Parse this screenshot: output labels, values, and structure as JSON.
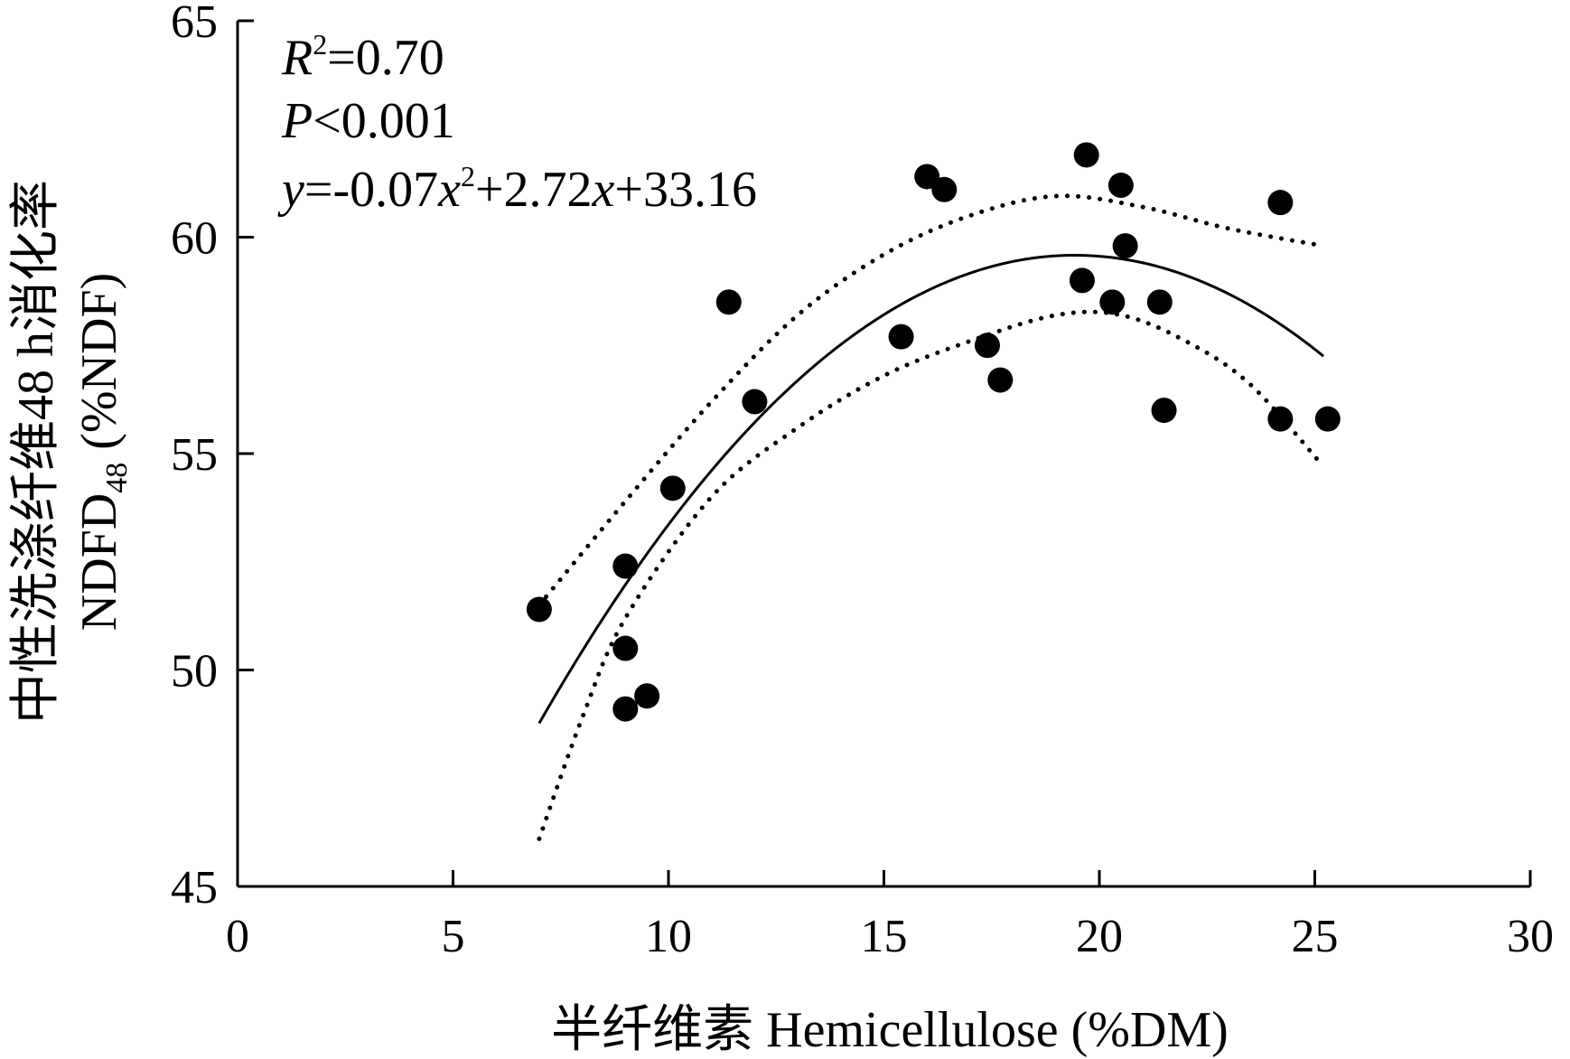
{
  "chart_data": {
    "type": "scatter",
    "xlabel": "半纤维素 Hemicellulose (%DM)",
    "ylabel_line1": "中性洗涤纤维48 h消化率",
    "ylabel_line2": "NDFD",
    "ylabel_line2_sub": "48",
    "ylabel_line2_suffix": " (%NDF)",
    "xlim": [
      0,
      30
    ],
    "ylim": [
      45,
      65
    ],
    "xticks": [
      0,
      5,
      10,
      15,
      20,
      25,
      30
    ],
    "yticks": [
      45,
      50,
      55,
      60,
      65
    ],
    "annotations": {
      "r2_label": "R",
      "r2_sup": "2",
      "r2_value": "=0.70",
      "p_label": "P",
      "p_value": "<0.001",
      "eq_y": "y",
      "eq_part1": "=-0.07",
      "eq_x1": "x",
      "eq_sup": "2",
      "eq_part2": "+2.72",
      "eq_x2": "x",
      "eq_part3": "+33.16"
    },
    "points": [
      {
        "x": 7.0,
        "y": 51.4
      },
      {
        "x": 9.0,
        "y": 52.4
      },
      {
        "x": 9.0,
        "y": 50.5
      },
      {
        "x": 9.0,
        "y": 49.1
      },
      {
        "x": 9.5,
        "y": 49.4
      },
      {
        "x": 10.1,
        "y": 54.2
      },
      {
        "x": 11.4,
        "y": 58.5
      },
      {
        "x": 12.0,
        "y": 56.2
      },
      {
        "x": 15.4,
        "y": 57.7
      },
      {
        "x": 16.0,
        "y": 61.4
      },
      {
        "x": 16.4,
        "y": 61.1
      },
      {
        "x": 17.4,
        "y": 57.5
      },
      {
        "x": 17.7,
        "y": 56.7
      },
      {
        "x": 19.6,
        "y": 59.0
      },
      {
        "x": 19.7,
        "y": 61.9
      },
      {
        "x": 20.3,
        "y": 58.5
      },
      {
        "x": 20.5,
        "y": 61.2
      },
      {
        "x": 20.6,
        "y": 59.8
      },
      {
        "x": 21.4,
        "y": 58.5
      },
      {
        "x": 21.5,
        "y": 56.0
      },
      {
        "x": 24.2,
        "y": 60.8
      },
      {
        "x": 24.2,
        "y": 55.8
      },
      {
        "x": 25.3,
        "y": 55.8
      }
    ],
    "fit": {
      "a": -0.07,
      "b": 2.72,
      "c": 33.16,
      "x_range": [
        7.0,
        25.2
      ]
    },
    "ci_upper": [
      [
        7.0,
        51.5
      ],
      [
        9,
        53.9
      ],
      [
        11,
        56.2
      ],
      [
        13,
        58.2
      ],
      [
        15,
        59.6
      ],
      [
        17,
        60.5
      ],
      [
        19,
        60.95
      ],
      [
        21,
        60.7
      ],
      [
        23,
        60.2
      ],
      [
        25.2,
        59.8
      ]
    ],
    "ci_lower": [
      [
        7.0,
        46.1
      ],
      [
        8,
        48.9
      ],
      [
        9,
        51.2
      ],
      [
        11,
        54.0
      ],
      [
        13,
        55.6
      ],
      [
        15,
        56.8
      ],
      [
        17,
        57.6
      ],
      [
        19,
        58.2
      ],
      [
        20.5,
        58.2
      ],
      [
        22,
        57.6
      ],
      [
        23.5,
        56.6
      ],
      [
        25.2,
        54.7
      ]
    ]
  }
}
